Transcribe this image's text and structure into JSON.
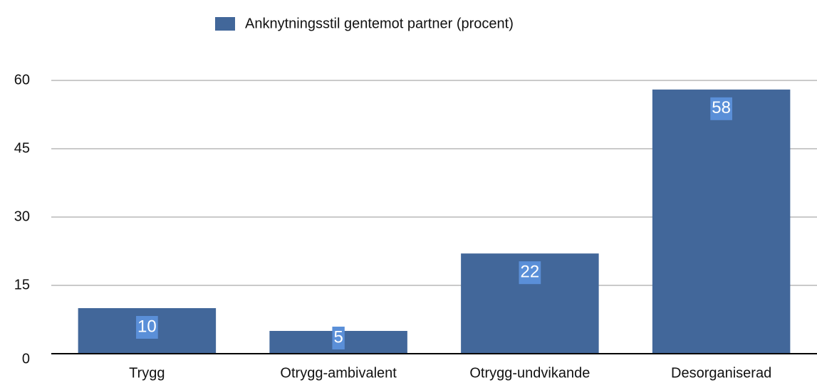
{
  "chart_data": {
    "type": "bar",
    "categories": [
      "Trygg",
      "Otrygg-ambivalent",
      "Otrygg-undvikande",
      "Desorganiserad"
    ],
    "series": [
      {
        "name": "Anknytningsstil gentemot partner (procent)",
        "color": "#42679a",
        "values": [
          10,
          5,
          22,
          58
        ]
      }
    ],
    "ylim": [
      0,
      60
    ],
    "yticks": [
      0,
      15,
      30,
      45,
      60
    ],
    "grid": true,
    "legend": "top"
  }
}
